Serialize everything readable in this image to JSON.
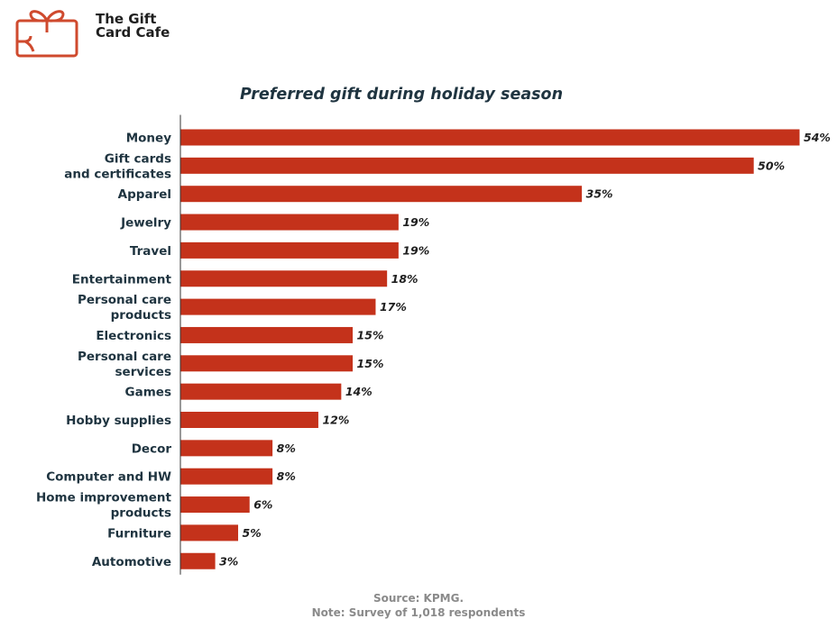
{
  "brand": {
    "name_line1": "The Gift",
    "name_line2": "Card Cafe",
    "logo_icon": "gift-card-icon",
    "accent_color": "#cf4a2e"
  },
  "chart_data": {
    "type": "bar",
    "orientation": "horizontal",
    "title": "Preferred gift during holiday season",
    "categories": [
      [
        "Money"
      ],
      [
        "Gift cards",
        "and certificates"
      ],
      [
        "Apparel"
      ],
      [
        "Jewelry"
      ],
      [
        "Travel"
      ],
      [
        "Entertainment"
      ],
      [
        "Personal care",
        "products"
      ],
      [
        "Electronics"
      ],
      [
        "Personal care",
        "services"
      ],
      [
        "Games"
      ],
      [
        "Hobby supplies"
      ],
      [
        "Decor"
      ],
      [
        "Computer and HW"
      ],
      [
        "Home improvement",
        "products"
      ],
      [
        "Furniture"
      ],
      [
        "Automotive"
      ]
    ],
    "values": [
      54,
      50,
      35,
      19,
      19,
      18,
      17,
      15,
      15,
      14,
      12,
      8,
      8,
      6,
      5,
      3
    ],
    "value_labels": [
      "54%",
      "50%",
      "35%",
      "19%",
      "19%",
      "18%",
      "17%",
      "15%",
      "15%",
      "14%",
      "12%",
      "8%",
      "8%",
      "6%",
      "5%",
      "3%"
    ],
    "unit": "%",
    "xlim": [
      0,
      54
    ],
    "grid": false,
    "bar_color": "#c4321b"
  },
  "footer": {
    "source": "Source: KPMG.",
    "note": "Note: Survey of 1,018 respondents"
  }
}
